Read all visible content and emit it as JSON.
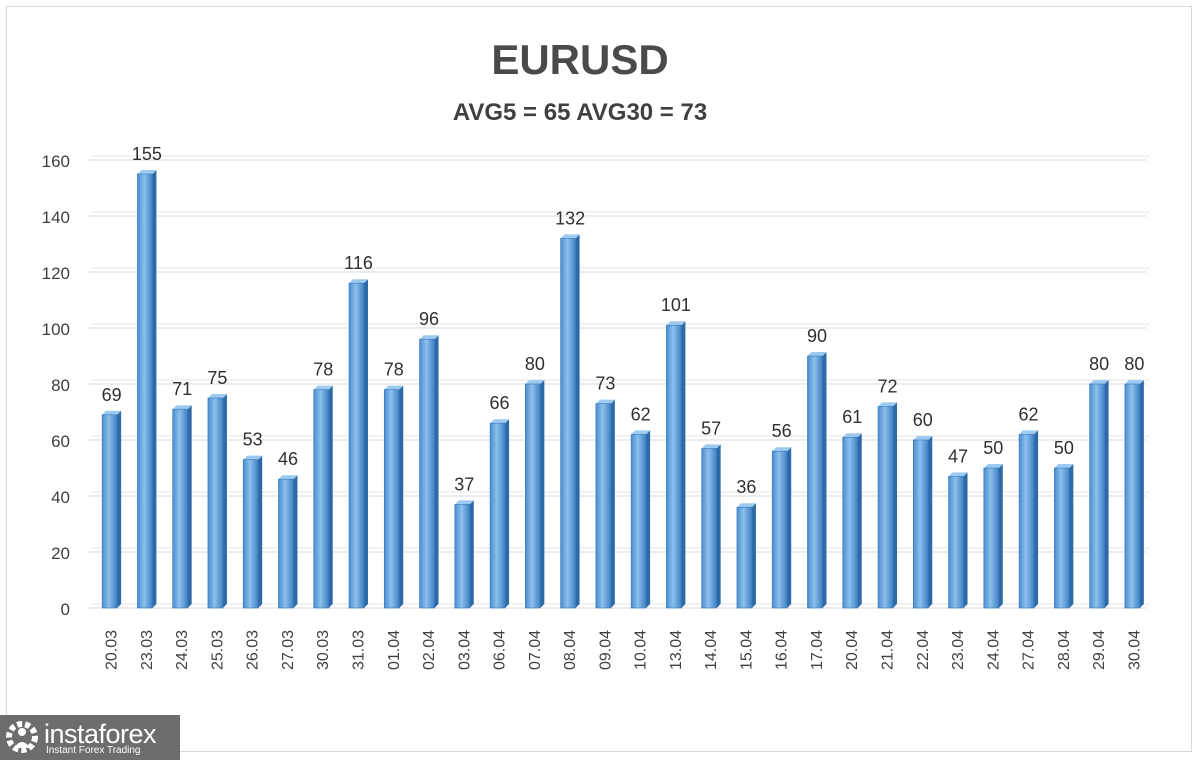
{
  "chart_data": {
    "type": "bar",
    "title": "EURUSD",
    "subtitle": "AVG5 = 65 AVG30 = 73",
    "xlabel": "",
    "ylabel": "",
    "ylim": [
      0,
      160
    ],
    "yticks": [
      0,
      20,
      40,
      60,
      80,
      100,
      120,
      140,
      160
    ],
    "grid": true,
    "legend": "none",
    "bar_color": "#5b9bd5",
    "categories": [
      "20.03",
      "23.03",
      "24.03",
      "25.03",
      "26.03",
      "27.03",
      "30.03",
      "31.03",
      "01.04",
      "02.04",
      "03.04",
      "06.04",
      "07.04",
      "08.04",
      "09.04",
      "10.04",
      "13.04",
      "14.04",
      "15.04",
      "16.04",
      "17.04",
      "20.04",
      "21.04",
      "22.04",
      "23.04",
      "24.04",
      "27.04",
      "28.04",
      "29.04",
      "30.04"
    ],
    "values": [
      69,
      155,
      71,
      75,
      53,
      46,
      78,
      116,
      78,
      96,
      37,
      66,
      80,
      132,
      73,
      62,
      101,
      57,
      36,
      56,
      90,
      61,
      72,
      60,
      47,
      50,
      62,
      50,
      80,
      80
    ]
  },
  "logo": {
    "name": "instaforex",
    "tagline": "Instant Forex Trading",
    "icon": "gear-person-icon"
  }
}
